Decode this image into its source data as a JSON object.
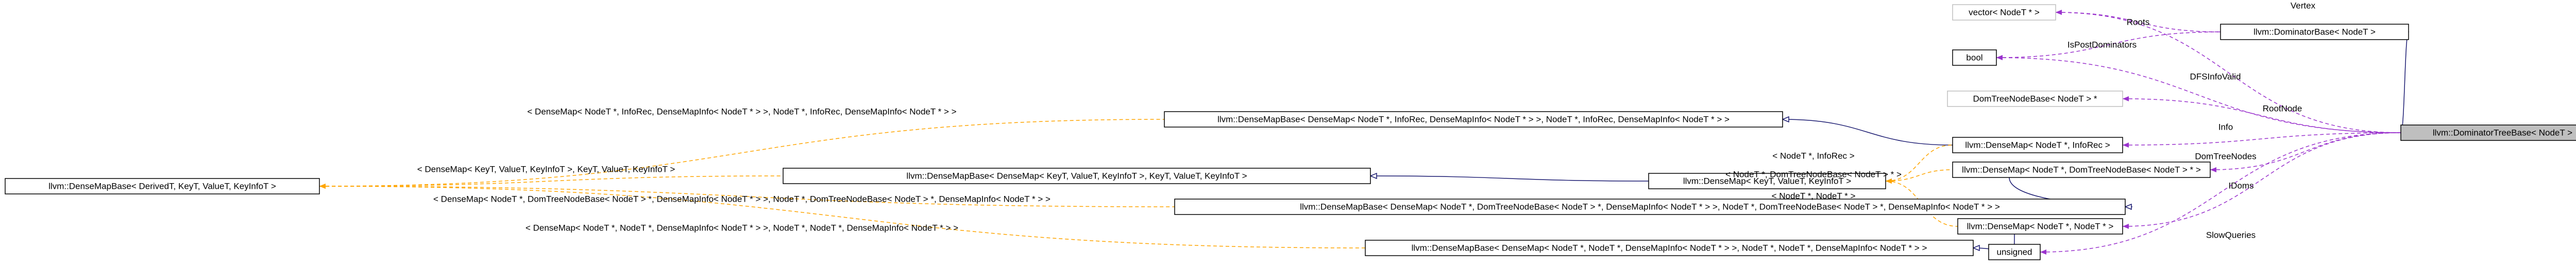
{
  "nodes": [
    "vector< NodeT * >",
    "llvm::DominatorBase< NodeT >",
    "bool",
    "DomTreeNodeBase< NodeT > *",
    "llvm::DominatorTreeBase< NodeT >",
    "llvm::DenseMapBase< DenseMap< NodeT *, InfoRec, DenseMapInfo< NodeT * > >, NodeT *, InfoRec, DenseMapInfo< NodeT * > >",
    "llvm::DenseMap< NodeT *, InfoRec >",
    "llvm::DenseMap< NodeT *, DomTreeNodeBase< NodeT > * >",
    "llvm::DenseMap< KeyT, ValueT, KeyInfoT >",
    "llvm::DenseMapBase< DenseMap< KeyT, ValueT, KeyInfoT >, KeyT, ValueT, KeyInfoT >",
    "llvm::DenseMapBase< DerivedT, KeyT, ValueT, KeyInfoT >",
    "llvm::DenseMapBase< DenseMap< NodeT *, DomTreeNodeBase< NodeT > *, DenseMapInfo< NodeT * > >, NodeT *, DomTreeNodeBase< NodeT > *, DenseMapInfo< NodeT * > >",
    "llvm::DenseMap< NodeT *, NodeT * >",
    "unsigned",
    "llvm::DenseMapBase< DenseMap< NodeT *, NodeT *, DenseMapInfo< NodeT * > >, NodeT *, NodeT *, DenseMapInfo< NodeT * > >"
  ],
  "edge_labels": [
    "Vertex",
    "Roots",
    "IsPostDominators",
    "DFSInfoValid",
    "RootNode",
    "Info",
    "DomTreeNodes",
    "IDoms",
    "SlowQueries",
    "< DenseMap< NodeT *, InfoRec, DenseMapInfo< NodeT * > >, NodeT *, InfoRec, DenseMapInfo< NodeT * > >",
    "< DenseMap< KeyT, ValueT, KeyInfoT >, KeyT, ValueT, KeyInfoT >",
    "< DenseMap< NodeT *, DomTreeNodeBase< NodeT > *, DenseMapInfo< NodeT * > >, NodeT *, DomTreeNodeBase< NodeT > *, DenseMapInfo< NodeT * > >",
    "< DenseMap< NodeT *, NodeT *, DenseMapInfo< NodeT * > >, NodeT *, NodeT *, DenseMapInfo< NodeT * > >",
    "< NodeT *, InfoRec >",
    "< NodeT *, DomTreeNodeBase< NodeT > * >",
    "< NodeT *, NodeT * >"
  ]
}
